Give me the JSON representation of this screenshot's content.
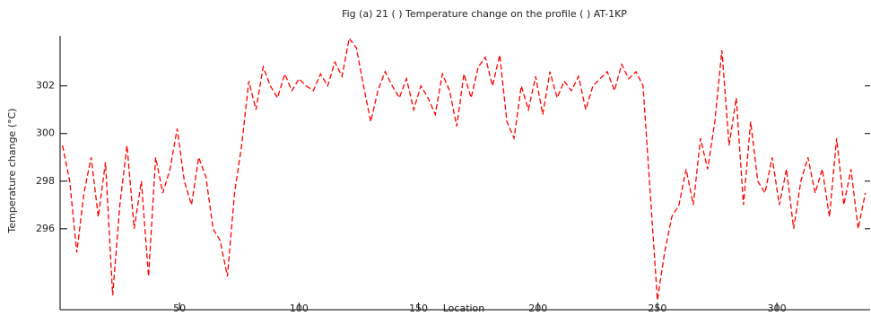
{
  "chart_data": {
    "type": "line",
    "title": "Fig (a) 21 ( ) Temperature change on the profile ( ) AT-1KP",
    "x_label": "Location",
    "y_label": "Temperature change (°C)",
    "xlim": [
      0,
      339
    ],
    "ylim": [
      292.6,
      304.1
    ],
    "xticks": [
      50,
      100,
      150,
      200,
      250,
      300
    ],
    "yticks": [
      296,
      298,
      300,
      302
    ],
    "x": [
      1,
      4,
      7,
      10,
      13,
      16,
      19,
      22,
      25,
      28,
      31,
      34,
      37,
      40,
      43,
      46,
      49,
      52,
      55,
      58,
      61,
      64,
      67,
      70,
      73,
      76,
      79,
      82,
      85,
      88,
      91,
      94,
      97,
      100,
      103,
      106,
      109,
      112,
      115,
      118,
      121,
      124,
      127,
      130,
      133,
      136,
      139,
      142,
      145,
      148,
      151,
      154,
      157,
      160,
      163,
      166,
      169,
      172,
      175,
      178,
      181,
      184,
      187,
      190,
      193,
      196,
      199,
      202,
      205,
      208,
      211,
      214,
      217,
      220,
      223,
      226,
      229,
      232,
      235,
      238,
      241,
      244,
      247,
      250,
      253,
      256,
      259,
      262,
      265,
      268,
      271,
      274,
      277,
      280,
      283,
      286,
      289,
      292,
      295,
      298,
      301,
      304,
      307,
      310,
      313,
      316,
      319,
      322,
      325,
      328,
      331,
      334,
      337
    ],
    "series": [
      {
        "name": "Temperature",
        "color": "#ff0000",
        "values": [
          299.5,
          298.0,
          295.0,
          297.5,
          299.0,
          296.5,
          298.8,
          293.2,
          297.0,
          299.5,
          296.0,
          298.0,
          294.0,
          299.0,
          297.5,
          298.5,
          300.2,
          298.0,
          297.0,
          299.0,
          298.2,
          296.0,
          295.5,
          294.0,
          297.5,
          299.5,
          302.2,
          301.0,
          302.8,
          302.0,
          301.5,
          302.5,
          301.8,
          302.3,
          302.0,
          301.8,
          302.5,
          302.0,
          303.0,
          302.4,
          304.0,
          303.6,
          302.0,
          300.5,
          301.8,
          302.6,
          302.0,
          301.5,
          302.3,
          301.0,
          302.0,
          301.5,
          300.8,
          302.5,
          301.8,
          300.3,
          302.5,
          301.5,
          302.8,
          303.2,
          302.0,
          303.3,
          300.5,
          299.8,
          302.0,
          301.0,
          302.4,
          300.8,
          302.6,
          301.5,
          302.2,
          301.8,
          302.4,
          301.0,
          302.0,
          302.3,
          302.6,
          301.8,
          302.9,
          302.3,
          302.6,
          302.0,
          297.5,
          293.0,
          295.0,
          296.5,
          297.0,
          298.5,
          297.0,
          299.8,
          298.5,
          300.5,
          303.5,
          299.5,
          301.5,
          297.0,
          300.5,
          298.0,
          297.5,
          299.0,
          297.0,
          298.5,
          296.0,
          298.0,
          299.0,
          297.5,
          298.5,
          296.5,
          299.8,
          297.0,
          298.5,
          296.0,
          297.5
        ]
      }
    ]
  }
}
